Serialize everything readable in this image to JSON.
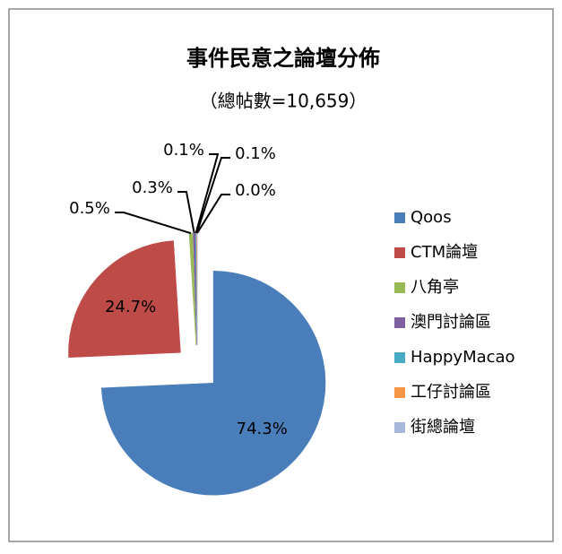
{
  "chart_data": {
    "type": "pie",
    "title": "事件民意之論壇分佈",
    "subtitle": "（總帖數=10,659）",
    "categories": [
      "Qoos",
      "CTM論壇",
      "八角亭",
      "澳門討論區",
      "HappyMacao",
      "工仔討論區",
      "街總論壇"
    ],
    "values": [
      74.3,
      24.7,
      0.5,
      0.3,
      0.1,
      0.1,
      0.0
    ],
    "value_labels": [
      "74.3%",
      "24.7%",
      "0.5%",
      "0.3%",
      "0.1%",
      "0.1%",
      "0.0%"
    ],
    "colors": [
      "#4a7ebb",
      "#be4b48",
      "#98b954",
      "#7d60a0",
      "#46aac5",
      "#f79646",
      "#a5b8da"
    ],
    "legend": "right"
  }
}
